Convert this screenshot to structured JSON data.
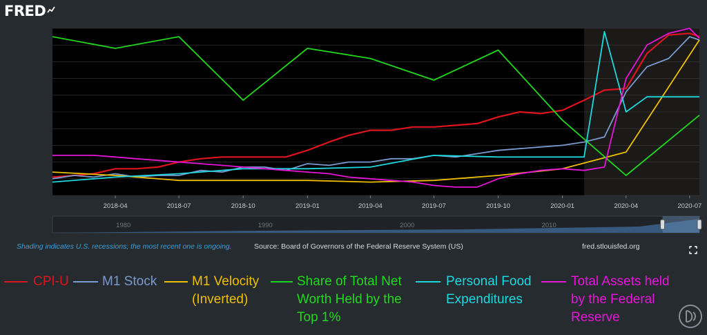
{
  "header": {
    "logo_text": "FRED"
  },
  "footer": {
    "shading_note": "Shading indicates U.S. recessions; the most recent one is ongoing.",
    "source": "Source: Board of Governors of the Federal Reserve System (US)",
    "site": "fred.stlouisfed.org"
  },
  "icons": {
    "fullscreen": "fullscreen-icon",
    "badge": "circle-logo-icon",
    "logo_mark": "graph-arrow-icon"
  },
  "colors": {
    "plot_bg": "#000000",
    "page_bg": "#262b30",
    "recession_shade": "#1b1a18",
    "grid": "#3a3a3a",
    "tick_text": "#c8ccd0"
  },
  "chart_data": {
    "type": "line",
    "x_ticks": [
      "2018-04",
      "2018-07",
      "2018-10",
      "2019-01",
      "2019-04",
      "2019-07",
      "2019-10",
      "2020-01",
      "2020-04",
      "2020-07"
    ],
    "x_range": [
      "2018-01-01",
      "2020-07-15"
    ],
    "recession": [
      "2020-02-01",
      "2020-07-15"
    ],
    "y_range": [
      0,
      100
    ],
    "grid": true,
    "navigator": {
      "ticks": [
        "1980",
        "1990",
        "2000",
        "2010"
      ],
      "range": [
        1975,
        2020.6
      ],
      "selection": [
        2018.0,
        2020.6
      ]
    },
    "series": [
      {
        "name": "CPI-U",
        "color": "#e0141e",
        "points": [
          [
            "2018-01-01",
            11
          ],
          [
            "2018-02-01",
            12
          ],
          [
            "2018-03-01",
            13
          ],
          [
            "2018-04-01",
            16
          ],
          [
            "2018-05-01",
            16
          ],
          [
            "2018-06-01",
            17
          ],
          [
            "2018-07-01",
            20
          ],
          [
            "2018-08-01",
            22
          ],
          [
            "2018-09-01",
            23
          ],
          [
            "2018-10-01",
            23
          ],
          [
            "2018-11-01",
            23
          ],
          [
            "2018-12-01",
            23
          ],
          [
            "2019-01-01",
            27
          ],
          [
            "2019-02-01",
            32
          ],
          [
            "2019-03-01",
            36
          ],
          [
            "2019-04-01",
            39
          ],
          [
            "2019-05-01",
            39
          ],
          [
            "2019-06-01",
            41
          ],
          [
            "2019-07-01",
            41
          ],
          [
            "2019-08-01",
            42
          ],
          [
            "2019-09-01",
            43
          ],
          [
            "2019-10-01",
            47
          ],
          [
            "2019-11-01",
            50
          ],
          [
            "2019-12-01",
            49
          ],
          [
            "2020-01-01",
            51
          ],
          [
            "2020-02-01",
            57
          ],
          [
            "2020-03-01",
            63
          ],
          [
            "2020-04-01",
            64
          ],
          [
            "2020-05-01",
            85
          ],
          [
            "2020-06-01",
            96
          ],
          [
            "2020-07-01",
            97
          ],
          [
            "2020-07-15",
            95
          ]
        ]
      },
      {
        "name": "M1 Stock",
        "color": "#7a9ad0",
        "points": [
          [
            "2018-01-01",
            10
          ],
          [
            "2018-02-01",
            12
          ],
          [
            "2018-03-01",
            11
          ],
          [
            "2018-04-01",
            13
          ],
          [
            "2018-05-01",
            11
          ],
          [
            "2018-06-01",
            12
          ],
          [
            "2018-07-01",
            12
          ],
          [
            "2018-08-01",
            15
          ],
          [
            "2018-09-01",
            14
          ],
          [
            "2018-10-01",
            17
          ],
          [
            "2018-11-01",
            17
          ],
          [
            "2018-12-01",
            15
          ],
          [
            "2019-01-01",
            19
          ],
          [
            "2019-02-01",
            18
          ],
          [
            "2019-03-01",
            20
          ],
          [
            "2019-04-01",
            20
          ],
          [
            "2019-05-01",
            22
          ],
          [
            "2019-06-01",
            22
          ],
          [
            "2019-07-01",
            24
          ],
          [
            "2019-08-01",
            23
          ],
          [
            "2019-09-01",
            25
          ],
          [
            "2019-10-01",
            27
          ],
          [
            "2019-11-01",
            28
          ],
          [
            "2019-12-01",
            29
          ],
          [
            "2020-01-01",
            30
          ],
          [
            "2020-02-01",
            32
          ],
          [
            "2020-03-01",
            35
          ],
          [
            "2020-04-01",
            62
          ],
          [
            "2020-05-01",
            77
          ],
          [
            "2020-06-01",
            82
          ],
          [
            "2020-07-01",
            95
          ],
          [
            "2020-07-15",
            93
          ]
        ]
      },
      {
        "name": "M1 Velocity (Inverted)",
        "color": "#f0c000",
        "points": [
          [
            "2018-01-01",
            14
          ],
          [
            "2018-04-01",
            12
          ],
          [
            "2018-07-01",
            9
          ],
          [
            "2018-10-01",
            9
          ],
          [
            "2019-01-01",
            9
          ],
          [
            "2019-04-01",
            8
          ],
          [
            "2019-07-01",
            9
          ],
          [
            "2019-10-01",
            12
          ],
          [
            "2020-01-01",
            16
          ],
          [
            "2020-04-01",
            26
          ],
          [
            "2020-07-15",
            93
          ]
        ]
      },
      {
        "name": "Share of Total Net Worth Held by the Top 1%",
        "color": "#22d81e",
        "points": [
          [
            "2018-01-01",
            95
          ],
          [
            "2018-04-01",
            88
          ],
          [
            "2018-07-01",
            95
          ],
          [
            "2018-10-01",
            57
          ],
          [
            "2019-01-01",
            88
          ],
          [
            "2019-04-01",
            82
          ],
          [
            "2019-07-01",
            69
          ],
          [
            "2019-10-01",
            87
          ],
          [
            "2020-01-01",
            45
          ],
          [
            "2020-04-01",
            12
          ],
          [
            "2020-07-15",
            48
          ]
        ]
      },
      {
        "name": "Personal Food Expenditures",
        "color": "#1ed8e0",
        "points": [
          [
            "2018-01-01",
            8
          ],
          [
            "2018-04-01",
            11
          ],
          [
            "2018-07-01",
            13
          ],
          [
            "2018-10-01",
            16
          ],
          [
            "2019-01-01",
            16
          ],
          [
            "2019-04-01",
            17
          ],
          [
            "2019-07-01",
            24
          ],
          [
            "2019-10-01",
            23
          ],
          [
            "2020-01-01",
            23
          ],
          [
            "2020-02-01",
            23
          ],
          [
            "2020-03-01",
            98
          ],
          [
            "2020-04-01",
            50
          ],
          [
            "2020-05-01",
            59
          ],
          [
            "2020-06-01",
            59
          ],
          [
            "2020-07-15",
            59
          ]
        ]
      },
      {
        "name": "Total Assets held by the Federal Reserve",
        "color": "#e815d8",
        "points": [
          [
            "2018-01-01",
            24
          ],
          [
            "2018-02-01",
            24
          ],
          [
            "2018-03-01",
            24
          ],
          [
            "2018-04-01",
            23
          ],
          [
            "2018-05-01",
            22
          ],
          [
            "2018-06-01",
            21
          ],
          [
            "2018-07-01",
            20
          ],
          [
            "2018-08-01",
            19
          ],
          [
            "2018-09-01",
            18
          ],
          [
            "2018-10-01",
            17
          ],
          [
            "2018-11-01",
            16
          ],
          [
            "2018-12-01",
            15
          ],
          [
            "2019-01-01",
            14
          ],
          [
            "2019-02-01",
            13
          ],
          [
            "2019-03-01",
            11
          ],
          [
            "2019-04-01",
            10
          ],
          [
            "2019-05-01",
            9
          ],
          [
            "2019-06-01",
            8
          ],
          [
            "2019-07-01",
            6
          ],
          [
            "2019-08-01",
            5
          ],
          [
            "2019-09-01",
            5
          ],
          [
            "2019-10-01",
            10
          ],
          [
            "2019-11-01",
            13
          ],
          [
            "2019-12-01",
            15
          ],
          [
            "2020-01-01",
            16
          ],
          [
            "2020-02-01",
            15
          ],
          [
            "2020-03-01",
            17
          ],
          [
            "2020-04-01",
            70
          ],
          [
            "2020-05-01",
            90
          ],
          [
            "2020-06-01",
            97
          ],
          [
            "2020-07-01",
            100
          ],
          [
            "2020-07-15",
            94
          ]
        ]
      }
    ]
  },
  "legend": [
    {
      "label": "CPI-U",
      "color": "#e0141e"
    },
    {
      "label": "M1 Stock",
      "color": "#7a9ad0"
    },
    {
      "label": "M1 Velocity (Inverted)",
      "color": "#f0c000"
    },
    {
      "label": "Share of Total Net Worth Held by the Top 1%",
      "color": "#22d81e"
    },
    {
      "label": "Personal Food Expenditures",
      "color": "#1ed8e0"
    },
    {
      "label": "Total Assets held by the Federal Reserve",
      "color": "#e815d8"
    }
  ]
}
